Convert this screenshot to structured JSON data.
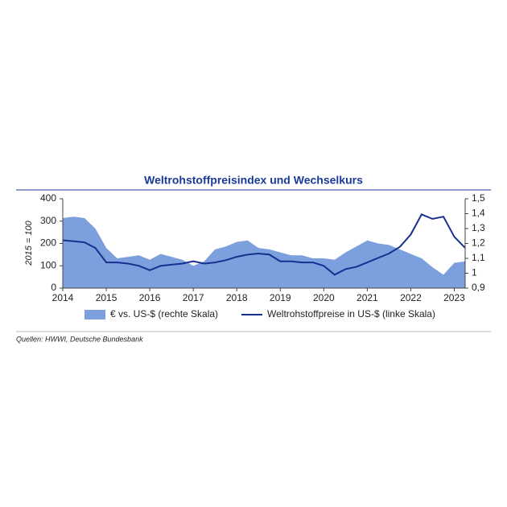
{
  "chart_data": {
    "type": "line",
    "title": "Weltrohstoffpreisindex und Wechselkurs",
    "y_label": "2015 = 100",
    "source": "Quellen: HWWI, Deutsche Bundesbank",
    "x": [
      2014,
      2014.25,
      2014.5,
      2014.75,
      2015,
      2015.25,
      2015.5,
      2015.75,
      2016,
      2016.25,
      2016.5,
      2016.75,
      2017,
      2017.25,
      2017.5,
      2017.75,
      2018,
      2018.25,
      2018.5,
      2018.75,
      2019,
      2019.25,
      2019.5,
      2019.75,
      2020,
      2020.25,
      2020.5,
      2020.75,
      2021,
      2021.25,
      2021.5,
      2021.75,
      2022,
      2022.25,
      2022.5,
      2022.75,
      2023,
      2023.25
    ],
    "xlim": [
      2014,
      2023.25
    ],
    "xticks": [
      2014,
      2015,
      2016,
      2017,
      2018,
      2019,
      2020,
      2021,
      2022,
      2023
    ],
    "ylim": [
      0,
      400
    ],
    "yticks": [
      0,
      100,
      200,
      300,
      400
    ],
    "y2lim": [
      0.9,
      1.5
    ],
    "y2ticks": [
      {
        "value": 0.9,
        "label": "0,9"
      },
      1,
      {
        "value": 1.1,
        "label": "1,1"
      },
      {
        "value": 1.2,
        "label": "1,2"
      },
      {
        "value": 1.3,
        "label": "1,3"
      },
      {
        "value": 1.4,
        "label": "1,4"
      },
      {
        "value": 1.5,
        "label": "1,5"
      }
    ],
    "series": [
      {
        "name": "€ vs. US-$ (rechte Skala)",
        "type": "area",
        "axis": "y2",
        "color": "#7c9fdd",
        "values": [
          1.37,
          1.38,
          1.37,
          1.3,
          1.17,
          1.1,
          1.11,
          1.12,
          1.09,
          1.13,
          1.11,
          1.09,
          1.05,
          1.08,
          1.16,
          1.18,
          1.21,
          1.22,
          1.17,
          1.16,
          1.14,
          1.12,
          1.12,
          1.1,
          1.1,
          1.09,
          1.14,
          1.18,
          1.22,
          1.2,
          1.19,
          1.16,
          1.13,
          1.1,
          1.04,
          0.99,
          1.07,
          1.08
        ]
      },
      {
        "name": "Weltrohstoffpreise in US-$ (linke Skala)",
        "type": "line",
        "color": "#16308f",
        "values": [
          214,
          210,
          205,
          180,
          115,
          115,
          110,
          100,
          80,
          100,
          105,
          110,
          120,
          110,
          115,
          125,
          140,
          150,
          155,
          150,
          120,
          120,
          115,
          115,
          100,
          60,
          85,
          95,
          115,
          135,
          155,
          185,
          240,
          330,
          310,
          320,
          230,
          180
        ]
      }
    ]
  }
}
